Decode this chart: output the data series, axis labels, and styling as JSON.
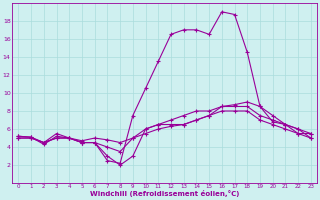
{
  "xlabel": "Windchill (Refroidissement éolien,°C)",
  "background_color": "#cff0f0",
  "line_color": "#990099",
  "grid_color": "#aadddd",
  "xlim": [
    -0.5,
    23.5
  ],
  "ylim": [
    0,
    20
  ],
  "xticks": [
    0,
    1,
    2,
    3,
    4,
    5,
    6,
    7,
    8,
    9,
    10,
    11,
    12,
    13,
    14,
    15,
    16,
    17,
    18,
    19,
    20,
    21,
    22,
    23
  ],
  "yticks": [
    2,
    4,
    6,
    8,
    10,
    12,
    14,
    16,
    18
  ],
  "line_spike_x": [
    0,
    1,
    2,
    3,
    4,
    5,
    6,
    7,
    8,
    9,
    10,
    11,
    12,
    13,
    14,
    15,
    16,
    17,
    18,
    19,
    20,
    21,
    22,
    23
  ],
  "line_spike_y": [
    5.2,
    5.1,
    4.3,
    5.2,
    5.0,
    4.5,
    4.5,
    2.5,
    2.2,
    7.5,
    10.5,
    13.5,
    16.5,
    17.0,
    17.0,
    16.5,
    19.0,
    18.7,
    14.5,
    8.5,
    6.8,
    6.5,
    6.0,
    5.0
  ],
  "line_high_x": [
    0,
    1,
    2,
    3,
    4,
    5,
    6,
    7,
    8,
    9,
    10,
    11,
    12,
    13,
    14,
    15,
    16,
    17,
    18,
    19,
    20,
    21,
    22,
    23
  ],
  "line_high_y": [
    5.2,
    5.1,
    4.5,
    5.0,
    5.0,
    4.7,
    5.0,
    4.8,
    4.5,
    5.0,
    5.5,
    6.0,
    6.3,
    6.5,
    7.0,
    7.5,
    8.5,
    8.7,
    9.0,
    8.5,
    7.5,
    6.5,
    6.0,
    5.5
  ],
  "line_mid_x": [
    0,
    1,
    2,
    3,
    4,
    5,
    6,
    7,
    8,
    9,
    10,
    11,
    12,
    13,
    14,
    15,
    16,
    17,
    18,
    19,
    20,
    21,
    22,
    23
  ],
  "line_mid_y": [
    5.0,
    5.0,
    4.5,
    5.0,
    5.0,
    4.5,
    4.5,
    4.0,
    3.5,
    5.0,
    6.0,
    6.5,
    7.0,
    7.5,
    8.0,
    8.0,
    8.5,
    8.5,
    8.5,
    7.5,
    7.0,
    6.5,
    5.5,
    5.5
  ],
  "line_low_x": [
    0,
    1,
    2,
    3,
    4,
    5,
    6,
    7,
    8,
    9,
    10,
    11,
    12,
    13,
    14,
    15,
    16,
    17,
    18,
    19,
    20,
    21,
    22,
    23
  ],
  "line_low_y": [
    5.0,
    5.0,
    4.5,
    5.5,
    5.0,
    4.5,
    4.5,
    3.0,
    2.0,
    3.0,
    6.0,
    6.5,
    6.5,
    6.5,
    7.0,
    7.5,
    8.0,
    8.0,
    8.0,
    7.0,
    6.5,
    6.0,
    5.5,
    5.0
  ]
}
